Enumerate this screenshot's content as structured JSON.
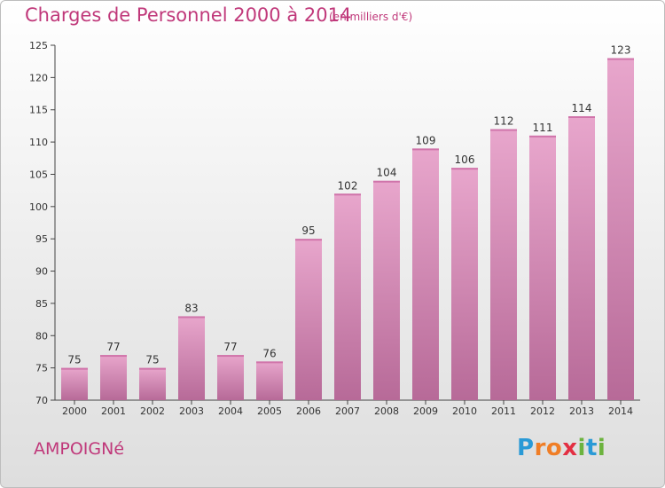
{
  "title": "Charges de Personnel 2000 à 2014",
  "subtitle": "(en milliers d'€)",
  "commune": "AMPOIGNé",
  "logo": {
    "letters": [
      "P",
      "r",
      "o",
      "x",
      "i",
      "t",
      "i"
    ],
    "colors": [
      "#2a9ad6",
      "#f07e26",
      "#f07e26",
      "#e32f42",
      "#6cb33e",
      "#2a9ad6",
      "#6cb33e"
    ]
  },
  "colors": {
    "bar_top": "#e8a6cc",
    "bar_bottom": "#b76a98",
    "title": "#c0387a"
  },
  "chart_data": {
    "type": "bar",
    "categories": [
      "2000",
      "2001",
      "2002",
      "2003",
      "2004",
      "2005",
      "2006",
      "2007",
      "2008",
      "2009",
      "2010",
      "2011",
      "2012",
      "2013",
      "2014"
    ],
    "values": [
      75,
      77,
      75,
      83,
      77,
      76,
      95,
      102,
      104,
      109,
      106,
      112,
      111,
      114,
      123
    ],
    "ylim": [
      70,
      125
    ],
    "yticks": [
      70,
      75,
      80,
      85,
      90,
      95,
      100,
      105,
      110,
      115,
      120,
      125
    ],
    "grid": false
  }
}
